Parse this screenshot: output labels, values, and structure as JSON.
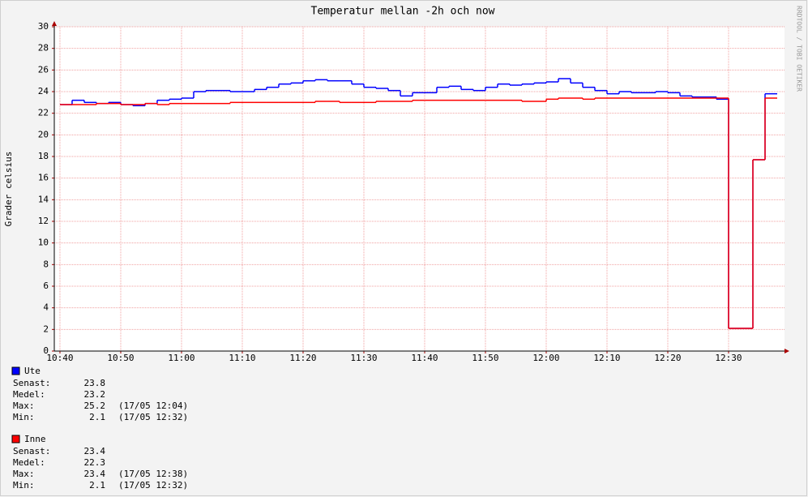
{
  "chart_data": {
    "type": "step-line",
    "title": "Temperatur mellan -2h och now",
    "y_label": "Grader celsius",
    "watermark": "RRDTOOL / TOBI OETIKER",
    "xlim": [
      639.07,
      759.2
    ],
    "xticks": [
      {
        "value": 640,
        "label": "10:40"
      },
      {
        "value": 650,
        "label": "10:50"
      },
      {
        "value": 660,
        "label": "11:00"
      },
      {
        "value": 670,
        "label": "11:10"
      },
      {
        "value": 680,
        "label": "11:20"
      },
      {
        "value": 690,
        "label": "11:30"
      },
      {
        "value": 700,
        "label": "11:40"
      },
      {
        "value": 710,
        "label": "11:50"
      },
      {
        "value": 720,
        "label": "12:00"
      },
      {
        "value": 730,
        "label": "12:10"
      },
      {
        "value": 740,
        "label": "12:20"
      },
      {
        "value": 750,
        "label": "12:30"
      }
    ],
    "ylim": [
      0,
      30
    ],
    "yticks": [
      0,
      2,
      4,
      6,
      8,
      10,
      12,
      14,
      16,
      18,
      20,
      22,
      24,
      26,
      28,
      30
    ],
    "grid": true,
    "x": [
      640,
      642,
      644,
      646,
      648,
      650,
      652,
      654,
      656,
      658,
      660,
      662,
      664,
      666,
      668,
      670,
      672,
      674,
      676,
      678,
      680,
      682,
      684,
      686,
      688,
      690,
      692,
      694,
      696,
      698,
      700,
      702,
      704,
      706,
      708,
      710,
      712,
      714,
      716,
      718,
      720,
      722,
      724,
      726,
      728,
      730,
      732,
      734,
      736,
      738,
      740,
      742,
      744,
      746,
      748,
      750,
      752,
      754,
      756
    ],
    "series": [
      {
        "name": "Ute",
        "color": "#0000ff",
        "values": [
          22.8,
          23.2,
          23.0,
          22.9,
          23.0,
          22.8,
          22.7,
          22.9,
          23.2,
          23.3,
          23.4,
          24.0,
          24.1,
          24.1,
          24.0,
          24.0,
          24.2,
          24.4,
          24.7,
          24.8,
          25.0,
          25.1,
          25.0,
          25.0,
          24.7,
          24.4,
          24.3,
          24.1,
          23.6,
          23.9,
          23.9,
          24.4,
          24.5,
          24.2,
          24.1,
          24.4,
          24.7,
          24.6,
          24.7,
          24.8,
          24.9,
          25.2,
          24.8,
          24.4,
          24.1,
          23.8,
          24.0,
          23.9,
          23.9,
          24.0,
          23.9,
          23.6,
          23.5,
          23.5,
          23.3,
          2.1,
          2.1,
          17.7,
          23.8
        ],
        "stats": [
          {
            "label": "Senast:",
            "value": 23.8
          },
          {
            "label": "Medel:",
            "value": 23.2
          },
          {
            "label": "Max:",
            "value": 25.2,
            "time": "(17/05 12:04)"
          },
          {
            "label": "Min:",
            "value": 2.1,
            "time": "(17/05 12:32)"
          }
        ]
      },
      {
        "name": "Inne",
        "color": "#ff0000",
        "values": [
          22.8,
          22.8,
          22.8,
          22.9,
          22.9,
          22.8,
          22.8,
          22.9,
          22.8,
          22.9,
          22.9,
          22.9,
          22.9,
          22.9,
          23.0,
          23.0,
          23.0,
          23.0,
          23.0,
          23.0,
          23.0,
          23.1,
          23.1,
          23.0,
          23.0,
          23.0,
          23.1,
          23.1,
          23.1,
          23.2,
          23.2,
          23.2,
          23.2,
          23.2,
          23.2,
          23.2,
          23.2,
          23.2,
          23.1,
          23.1,
          23.3,
          23.4,
          23.4,
          23.3,
          23.4,
          23.4,
          23.4,
          23.4,
          23.4,
          23.4,
          23.4,
          23.4,
          23.4,
          23.4,
          23.4,
          2.1,
          2.1,
          17.7,
          23.4
        ],
        "stats": [
          {
            "label": "Senast:",
            "value": 23.4
          },
          {
            "label": "Medel:",
            "value": 22.3
          },
          {
            "label": "Max:",
            "value": 23.4,
            "time": "(17/05 12:38)"
          },
          {
            "label": "Min:",
            "value": 2.1,
            "time": "(17/05 12:32)"
          }
        ]
      }
    ]
  }
}
